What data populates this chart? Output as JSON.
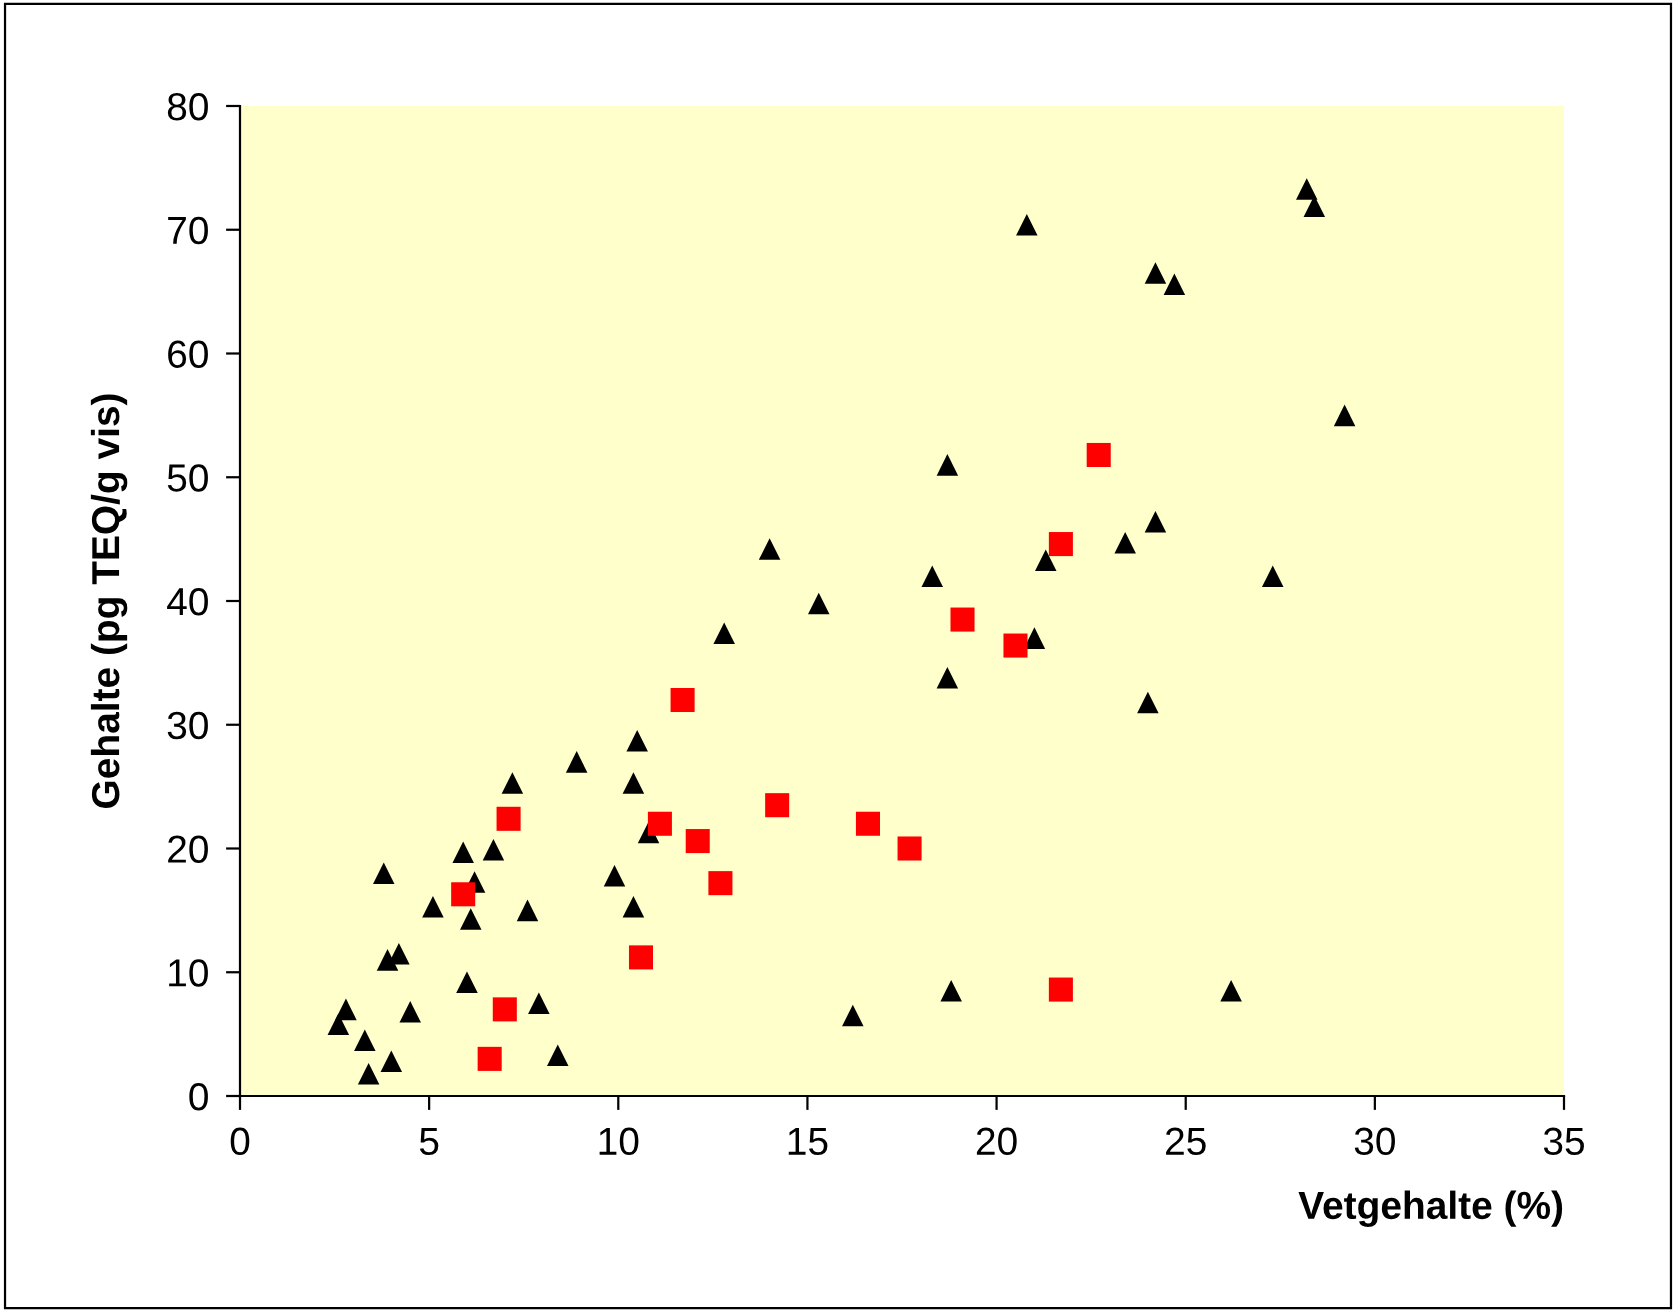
{
  "chart_data": {
    "type": "scatter",
    "xlabel": "Vetgehalte (%)",
    "ylabel": "Gehalte (pg TEQ/g vis)",
    "xlim": [
      0,
      35
    ],
    "ylim": [
      0,
      80
    ],
    "xticks": [
      0,
      5,
      10,
      15,
      20,
      25,
      30,
      35
    ],
    "yticks": [
      0,
      10,
      20,
      30,
      40,
      50,
      60,
      70,
      80
    ],
    "series": [
      {
        "color": "#000000",
        "marker": "triangle",
        "x": [
          2.6,
          2.8,
          3.3,
          3.4,
          3.8,
          3.9,
          4.0,
          4.2,
          4.5,
          5.1,
          5.9,
          6.0,
          6.1,
          6.2,
          6.7,
          7.2,
          7.6,
          7.9,
          8.4,
          8.9,
          9.9,
          10.4,
          10.4,
          10.5,
          10.8,
          12.8,
          14.0,
          15.3,
          16.2,
          18.3,
          18.7,
          18.7,
          18.8,
          20.8,
          21.0,
          21.3,
          23.4,
          24.0,
          24.2,
          24.2,
          24.7,
          26.2,
          27.3,
          28.2,
          28.4,
          29.2
        ],
        "values": [
          5.8,
          7,
          4.5,
          1.8,
          18,
          11,
          2.8,
          11.5,
          6.8,
          15.3,
          19.7,
          9.2,
          14.3,
          17.3,
          19.9,
          25.3,
          15,
          7.5,
          3.3,
          27,
          17.8,
          25.3,
          15.3,
          28.7,
          21.3,
          37.4,
          44.2,
          39.8,
          6.5,
          42,
          51,
          33.8,
          8.5,
          70.4,
          37,
          43.3,
          44.7,
          31.8,
          66.5,
          46.4,
          65.6,
          8.5,
          42,
          73.3,
          71.9,
          55
        ]
      },
      {
        "color": "#ff0000",
        "marker": "square",
        "x": [
          5.9,
          6.6,
          7.0,
          7.1,
          10.6,
          11.1,
          11.7,
          12.1,
          12.7,
          14.2,
          16.6,
          17.7,
          19.1,
          20.5,
          21.7,
          21.7,
          22.7
        ],
        "values": [
          16.3,
          3,
          7,
          22.4,
          11.2,
          22,
          32,
          20.6,
          17.2,
          23.5,
          22,
          20,
          38.5,
          36.4,
          44.6,
          8.6,
          51.8
        ]
      }
    ]
  }
}
